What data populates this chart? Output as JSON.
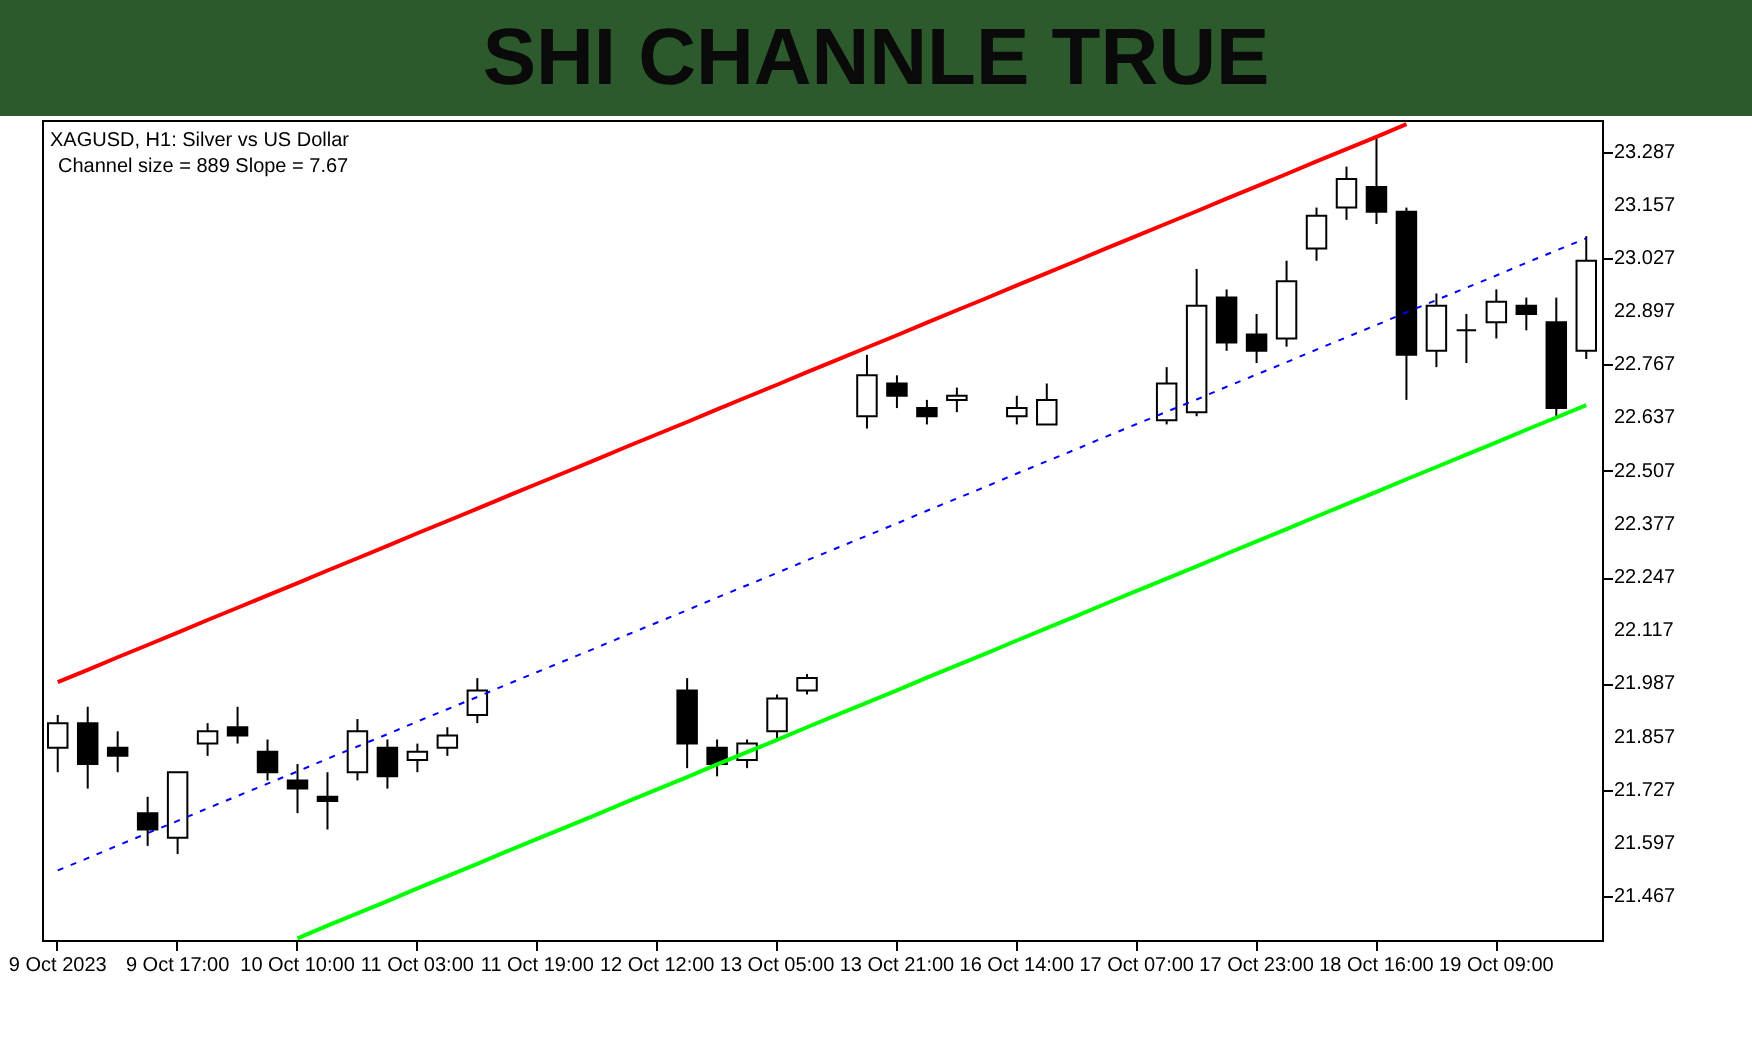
{
  "chart_data": {
    "type": "candlestick",
    "title": "SHI CHANNLE TRUE",
    "annotations": [
      "XAGUSD, H1:  Silver vs US Dollar",
      "Channel size = 889 Slope = 7.67"
    ],
    "categories": [
      "9 Oct 2023",
      null,
      null,
      null,
      "9 Oct 17:00",
      null,
      null,
      null,
      "10 Oct 10:00",
      null,
      null,
      null,
      "11 Oct 03:00",
      null,
      null,
      null,
      "11 Oct 19:00",
      null,
      null,
      null,
      "12 Oct 12:00",
      null,
      null,
      null,
      "13 Oct 05:00",
      null,
      null,
      null,
      "13 Oct 21:00",
      null,
      null,
      null,
      "16 Oct 14:00",
      null,
      null,
      null,
      "17 Oct 07:00",
      null,
      null,
      null,
      "17 Oct 23:00",
      null,
      null,
      null,
      "18 Oct 16:00",
      null,
      null,
      null,
      "19 Oct 09:00",
      null,
      null,
      null
    ],
    "series": [
      {
        "color": "#000000",
        "ohlc": [
          [
            21.83,
            21.91,
            21.77,
            21.89
          ],
          [
            21.89,
            21.93,
            21.73,
            21.79
          ],
          [
            21.83,
            21.87,
            21.77,
            21.81
          ],
          [
            21.67,
            21.71,
            21.59,
            21.63
          ],
          [
            21.61,
            21.77,
            21.57,
            21.77
          ],
          [
            21.84,
            21.89,
            21.81,
            21.87
          ],
          [
            21.88,
            21.93,
            21.84,
            21.86
          ],
          [
            21.82,
            21.85,
            21.75,
            21.77
          ],
          [
            21.75,
            21.79,
            21.67,
            21.73
          ],
          [
            21.71,
            21.77,
            21.63,
            21.7
          ],
          [
            21.77,
            21.9,
            21.75,
            21.87
          ],
          [
            21.83,
            21.85,
            21.73,
            21.76
          ],
          [
            21.8,
            21.84,
            21.77,
            21.82
          ],
          [
            21.83,
            21.88,
            21.81,
            21.86
          ],
          [
            21.91,
            22.0,
            21.89,
            21.97
          ],
          null,
          null,
          null,
          null,
          null,
          null,
          [
            21.97,
            22.0,
            21.78,
            21.84
          ],
          [
            21.83,
            21.85,
            21.76,
            21.79
          ],
          [
            21.8,
            21.85,
            21.78,
            21.84
          ],
          [
            21.87,
            21.96,
            21.85,
            21.95
          ],
          [
            21.97,
            22.01,
            21.96,
            22.0
          ],
          null,
          [
            22.64,
            22.79,
            22.61,
            22.74
          ],
          [
            22.72,
            22.74,
            22.66,
            22.69
          ],
          [
            22.66,
            22.68,
            22.62,
            22.64
          ],
          [
            22.68,
            22.71,
            22.65,
            22.69
          ],
          null,
          [
            22.64,
            22.69,
            22.62,
            22.66
          ],
          [
            22.62,
            22.72,
            22.62,
            22.68
          ],
          null,
          null,
          null,
          [
            22.63,
            22.76,
            22.62,
            22.72
          ],
          [
            22.65,
            23.0,
            22.64,
            22.91
          ],
          [
            22.93,
            22.95,
            22.8,
            22.82
          ],
          [
            22.84,
            22.89,
            22.77,
            22.8
          ],
          [
            22.83,
            23.02,
            22.81,
            22.97
          ],
          [
            23.05,
            23.15,
            23.02,
            23.13
          ],
          [
            23.15,
            23.25,
            23.12,
            23.22
          ],
          [
            23.2,
            23.32,
            23.11,
            23.14
          ],
          [
            23.14,
            23.15,
            22.68,
            22.79
          ],
          [
            22.8,
            22.94,
            22.76,
            22.91
          ],
          [
            22.85,
            22.89,
            22.77,
            22.85
          ],
          [
            22.87,
            22.95,
            22.83,
            22.92
          ],
          [
            22.91,
            22.93,
            22.85,
            22.89
          ],
          [
            22.87,
            22.93,
            22.64,
            22.66
          ],
          [
            22.8,
            23.08,
            22.78,
            23.02
          ]
        ]
      },
      {
        "type": "line",
        "color": "#ff0000",
        "line_style": "solid",
        "values": [
          21.99,
          22.02,
          22.051,
          22.081,
          22.111,
          22.142,
          22.172,
          22.202,
          22.232,
          22.263,
          22.293,
          22.323,
          22.354,
          22.384,
          22.414,
          22.445,
          22.475,
          22.505,
          22.535,
          22.566,
          22.596,
          22.626,
          22.657,
          22.687,
          22.717,
          22.748,
          22.778,
          22.808,
          22.838,
          22.869,
          22.899,
          22.929,
          22.96,
          22.99,
          23.02,
          23.051,
          23.081,
          23.111,
          23.141,
          23.172,
          23.202,
          23.232,
          23.263,
          23.293,
          23.323,
          23.354,
          null,
          null,
          null,
          null,
          null,
          null
        ]
      },
      {
        "type": "line",
        "color": "#0000ff",
        "line_style": "dashed",
        "values": [
          21.53,
          21.56,
          21.591,
          21.621,
          21.651,
          21.682,
          21.712,
          21.742,
          21.772,
          21.803,
          21.833,
          21.863,
          21.894,
          21.924,
          21.954,
          21.985,
          22.015,
          22.045,
          22.075,
          22.106,
          22.136,
          22.166,
          22.197,
          22.227,
          22.257,
          22.288,
          22.318,
          22.348,
          22.378,
          22.409,
          22.439,
          22.469,
          22.5,
          22.53,
          22.56,
          22.591,
          22.621,
          22.651,
          22.681,
          22.712,
          22.742,
          22.772,
          22.803,
          22.833,
          22.863,
          22.894,
          22.924,
          22.954,
          22.984,
          23.015,
          23.045,
          23.075
        ]
      },
      {
        "type": "line",
        "color": "#00ff00",
        "line_style": "solid",
        "values": [
          null,
          null,
          null,
          null,
          null,
          null,
          null,
          null,
          21.364,
          21.395,
          21.425,
          21.455,
          21.486,
          21.516,
          21.546,
          21.577,
          21.607,
          21.637,
          21.667,
          21.698,
          21.728,
          21.758,
          21.789,
          21.819,
          21.849,
          21.88,
          21.91,
          21.94,
          21.97,
          22.001,
          22.031,
          22.061,
          22.092,
          22.122,
          22.152,
          22.183,
          22.213,
          22.243,
          22.273,
          22.304,
          22.334,
          22.364,
          22.395,
          22.425,
          22.455,
          22.486,
          22.516,
          22.546,
          22.576,
          22.607,
          22.637,
          22.667
        ]
      }
    ],
    "ylim": [
      21.36,
      23.364
    ],
    "yticks": [
      21.467,
      21.597,
      21.727,
      21.857,
      21.987,
      22.117,
      22.247,
      22.377,
      22.507,
      22.637,
      22.767,
      22.897,
      23.027,
      23.157,
      23.287
    ],
    "grid": false
  }
}
